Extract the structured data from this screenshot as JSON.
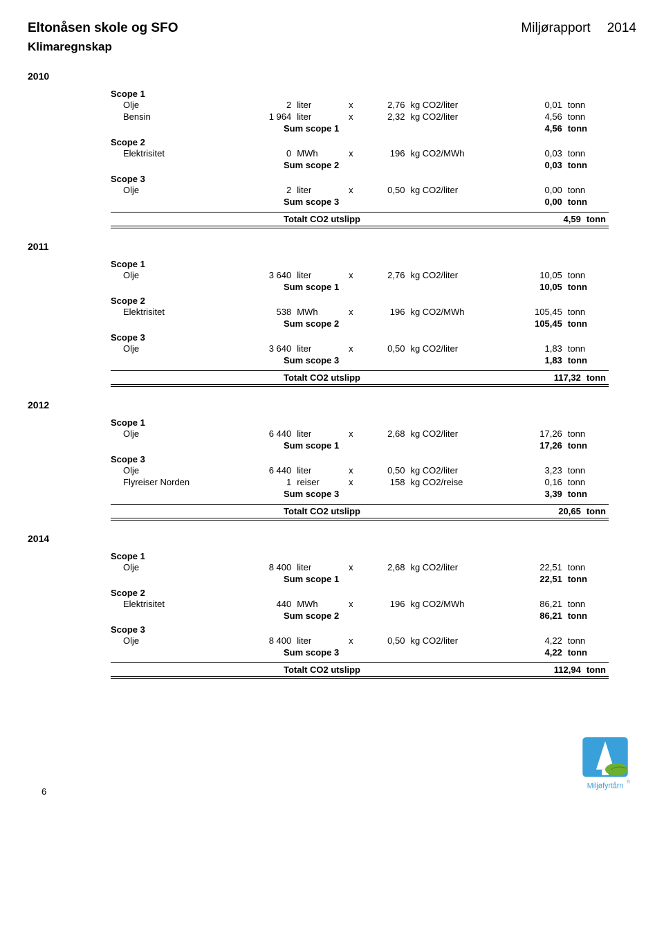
{
  "header": {
    "org": "Eltonåsen skole og SFO",
    "report": "Miljørapport",
    "year": "2014",
    "subtitle": "Klimaregnskap"
  },
  "years": [
    {
      "year": "2010",
      "scopes": [
        {
          "name": "Scope 1",
          "rows": [
            {
              "item": "Olje",
              "qty": "2",
              "unit1": "liter",
              "x": "x",
              "factor": "2,76",
              "unit2": "kg CO2/liter",
              "val": "0,01",
              "unit3": "tonn"
            },
            {
              "item": "Bensin",
              "qty": "1 964",
              "unit1": "liter",
              "x": "x",
              "factor": "2,32",
              "unit2": "kg CO2/liter",
              "val": "4,56",
              "unit3": "tonn"
            }
          ],
          "sum_label": "Sum scope 1",
          "sum_val": "4,56",
          "sum_unit": "tonn"
        },
        {
          "name": "Scope 2",
          "rows": [
            {
              "item": "Elektrisitet",
              "qty": "0",
              "unit1": "MWh",
              "x": "x",
              "factor": "196",
              "unit2": "kg CO2/MWh",
              "val": "0,03",
              "unit3": "tonn"
            }
          ],
          "sum_label": "Sum scope 2",
          "sum_val": "0,03",
          "sum_unit": "tonn"
        },
        {
          "name": "Scope 3",
          "rows": [
            {
              "item": "Olje",
              "qty": "2",
              "unit1": "liter",
              "x": "x",
              "factor": "0,50",
              "unit2": "kg CO2/liter",
              "val": "0,00",
              "unit3": "tonn"
            }
          ],
          "sum_label": "Sum scope 3",
          "sum_val": "0,00",
          "sum_unit": "tonn"
        }
      ],
      "total_label": "Totalt CO2 utslipp",
      "total_val": "4,59",
      "total_unit": "tonn"
    },
    {
      "year": "2011",
      "scopes": [
        {
          "name": "Scope 1",
          "rows": [
            {
              "item": "Olje",
              "qty": "3 640",
              "unit1": "liter",
              "x": "x",
              "factor": "2,76",
              "unit2": "kg CO2/liter",
              "val": "10,05",
              "unit3": "tonn"
            }
          ],
          "sum_label": "Sum scope 1",
          "sum_val": "10,05",
          "sum_unit": "tonn"
        },
        {
          "name": "Scope 2",
          "rows": [
            {
              "item": "Elektrisitet",
              "qty": "538",
              "unit1": "MWh",
              "x": "x",
              "factor": "196",
              "unit2": "kg CO2/MWh",
              "val": "105,45",
              "unit3": "tonn"
            }
          ],
          "sum_label": "Sum scope 2",
          "sum_val": "105,45",
          "sum_unit": "tonn"
        },
        {
          "name": "Scope 3",
          "rows": [
            {
              "item": "Olje",
              "qty": "3 640",
              "unit1": "liter",
              "x": "x",
              "factor": "0,50",
              "unit2": "kg CO2/liter",
              "val": "1,83",
              "unit3": "tonn"
            }
          ],
          "sum_label": "Sum scope 3",
          "sum_val": "1,83",
          "sum_unit": "tonn"
        }
      ],
      "total_label": "Totalt CO2 utslipp",
      "total_val": "117,32",
      "total_unit": "tonn"
    },
    {
      "year": "2012",
      "scopes": [
        {
          "name": "Scope 1",
          "rows": [
            {
              "item": "Olje",
              "qty": "6 440",
              "unit1": "liter",
              "x": "x",
              "factor": "2,68",
              "unit2": "kg CO2/liter",
              "val": "17,26",
              "unit3": "tonn"
            }
          ],
          "sum_label": "Sum scope 1",
          "sum_val": "17,26",
          "sum_unit": "tonn"
        },
        {
          "name": "Scope 3",
          "rows": [
            {
              "item": "Olje",
              "qty": "6 440",
              "unit1": "liter",
              "x": "x",
              "factor": "0,50",
              "unit2": "kg CO2/liter",
              "val": "3,23",
              "unit3": "tonn"
            },
            {
              "item": "Flyreiser Norden",
              "qty": "1",
              "unit1": "reiser",
              "x": "x",
              "factor": "158",
              "unit2": "kg CO2/reise",
              "val": "0,16",
              "unit3": "tonn"
            }
          ],
          "sum_label": "Sum scope 3",
          "sum_val": "3,39",
          "sum_unit": "tonn"
        }
      ],
      "total_label": "Totalt CO2 utslipp",
      "total_val": "20,65",
      "total_unit": "tonn"
    },
    {
      "year": "2014",
      "scopes": [
        {
          "name": "Scope 1",
          "rows": [
            {
              "item": "Olje",
              "qty": "8 400",
              "unit1": "liter",
              "x": "x",
              "factor": "2,68",
              "unit2": "kg CO2/liter",
              "val": "22,51",
              "unit3": "tonn"
            }
          ],
          "sum_label": "Sum scope 1",
          "sum_val": "22,51",
          "sum_unit": "tonn"
        },
        {
          "name": "Scope 2",
          "rows": [
            {
              "item": "Elektrisitet",
              "qty": "440",
              "unit1": "MWh",
              "x": "x",
              "factor": "196",
              "unit2": "kg CO2/MWh",
              "val": "86,21",
              "unit3": "tonn"
            }
          ],
          "sum_label": "Sum scope 2",
          "sum_val": "86,21",
          "sum_unit": "tonn"
        },
        {
          "name": "Scope 3",
          "rows": [
            {
              "item": "Olje",
              "qty": "8 400",
              "unit1": "liter",
              "x": "x",
              "factor": "0,50",
              "unit2": "kg CO2/liter",
              "val": "4,22",
              "unit3": "tonn"
            }
          ],
          "sum_label": "Sum scope 3",
          "sum_val": "4,22",
          "sum_unit": "tonn"
        }
      ],
      "total_label": "Totalt CO2 utslipp",
      "total_val": "112,94",
      "total_unit": "tonn"
    }
  ],
  "footer": {
    "page": "6",
    "logo_text": "Miljøfyrtårn",
    "logo_colors": {
      "sky": "#3aa0d9",
      "tower": "#ffffff",
      "leaf": "#6faf2e",
      "text": "#3aa0d9"
    }
  }
}
